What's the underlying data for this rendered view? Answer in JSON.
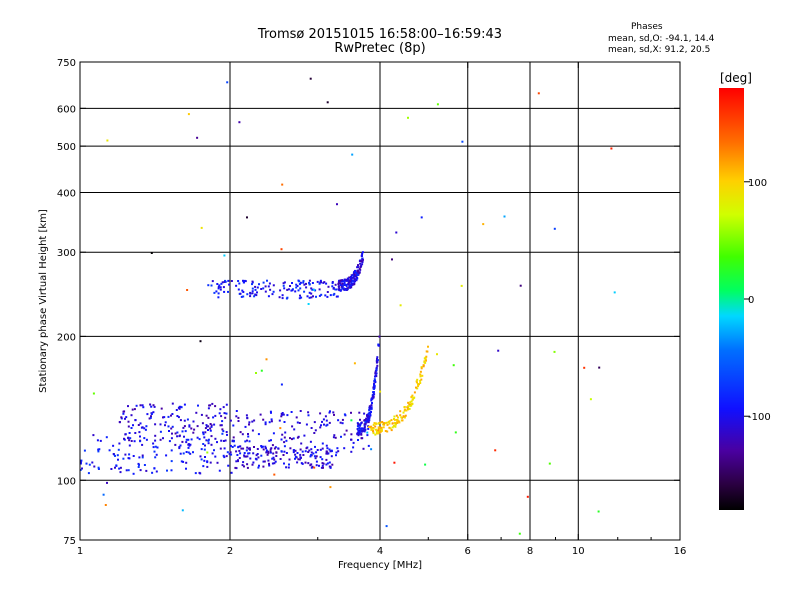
{
  "header": {
    "title_line1": "Tromsø 20151015 16:58:00–16:59:43",
    "title_line2": "RwPretec (8p)",
    "phases_title": "Phases",
    "phases_line_o": "mean, sd,O:  -94.1, 14.4",
    "phases_line_x": "mean, sd,X:  91.2, 20.5"
  },
  "chart_data": {
    "type": "scatter",
    "xlabel": "Frequency [MHz]",
    "ylabel": "Stationary phase Virtual Height [km]",
    "x_scale": "log",
    "y_scale": "log",
    "xlim": [
      1,
      16
    ],
    "ylim": [
      75,
      750
    ],
    "x_ticks": [
      1,
      2,
      4,
      6,
      8,
      10,
      16
    ],
    "y_ticks": [
      75,
      100,
      200,
      300,
      400,
      500,
      600,
      750
    ],
    "x_grid_lines": [
      2,
      4,
      6,
      8,
      10
    ],
    "y_grid_lines": [
      100,
      200,
      300,
      400,
      500,
      600
    ],
    "colorbar": {
      "label": "[deg]",
      "range": [
        -180,
        180
      ],
      "ticks": [
        100,
        0,
        -100
      ]
    },
    "point_groups": [
      {
        "trace": "lower E/F trace",
        "x_range": [
          1.0,
          2.05
        ],
        "y_range": [
          103,
          126
        ],
        "phase_deg": -100
      },
      {
        "trace": "lower trace continuation",
        "x_range": [
          2.05,
          3.3
        ],
        "y_range": [
          106,
          118
        ],
        "phase_deg": -110
      },
      {
        "trace": "upper band",
        "x_range": [
          1.2,
          2.0
        ],
        "y_range": [
          120,
          145
        ],
        "phase_deg": -110
      },
      {
        "trace": "middle trace",
        "x_range": [
          2.0,
          3.8
        ],
        "y_range": [
          114,
          140
        ],
        "phase_deg": -110
      },
      {
        "trace": "steep O cusp",
        "x_range": [
          3.6,
          3.99
        ],
        "y_range": [
          128,
          200
        ],
        "phase_deg": -105
      },
      {
        "trace": "upper F2 trace",
        "x_range": [
          1.8,
          3.3
        ],
        "y_range": [
          240,
          262
        ],
        "phase_deg": -100
      },
      {
        "trace": "upper F2 rising",
        "x_range": [
          3.3,
          3.7
        ],
        "y_range": [
          255,
          295
        ],
        "phase_deg": -110
      },
      {
        "trace": "X trace",
        "x_range": [
          3.8,
          5.0
        ],
        "y_range": [
          128,
          188
        ],
        "phase_deg": 100
      },
      {
        "trace": "scattered noise",
        "x_range": [
          1.0,
          12.5
        ],
        "y_range": [
          75,
          720
        ],
        "phase_deg": 0
      }
    ]
  }
}
